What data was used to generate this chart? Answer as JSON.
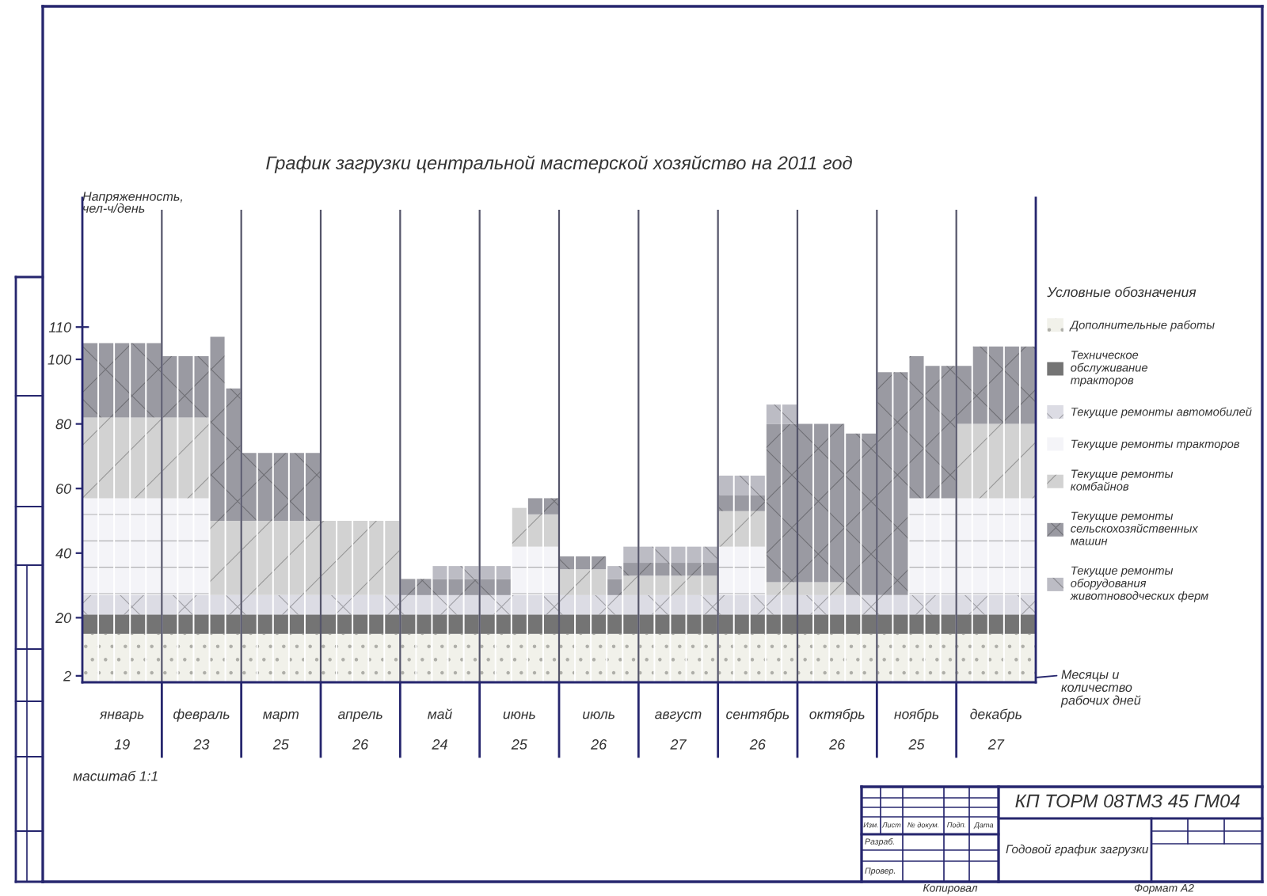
{
  "chart_data": {
    "type": "bar",
    "stacked": true,
    "title": "График загрузки центральной мастерской хозяйство на 2011 год",
    "ylabel": "Напряженность,\nчел-ч/день",
    "legend_title": "Условные обозначения",
    "legend": "right",
    "categories": [
      null,
      null,
      "январь",
      null,
      null,
      null,
      null,
      "февраль",
      null,
      null,
      null,
      null,
      "март",
      null,
      null,
      null,
      null,
      "апрель",
      null,
      null,
      null,
      null,
      "май",
      null,
      null,
      null,
      null,
      "июнь",
      null,
      null,
      null,
      null,
      "июль",
      null,
      null,
      null,
      null,
      "август",
      null,
      null,
      null,
      null,
      "сентябрь",
      null,
      null,
      null,
      null,
      "октябрь",
      null,
      null,
      null,
      null,
      "ноябрь",
      null,
      null,
      null,
      null,
      "декабрь",
      null,
      null
    ],
    "ylim": [
      0,
      150
    ],
    "yticks": [
      2,
      20,
      40,
      60,
      80,
      100,
      110
    ],
    "series": [
      {
        "name": "Дополнительные работы",
        "color": "#f1f1ea",
        "values": [
          15,
          15,
          15,
          15,
          15,
          15,
          15,
          15,
          15,
          15,
          15,
          15,
          15,
          15,
          15,
          15,
          15,
          15,
          15,
          15,
          15,
          15,
          15,
          15,
          15,
          15,
          15,
          15,
          15,
          15,
          15,
          15,
          15,
          15,
          15,
          15,
          15,
          15,
          15,
          15,
          15,
          15,
          15,
          15,
          15,
          15,
          15,
          15,
          15,
          15,
          15,
          15,
          15,
          15,
          15,
          15,
          15,
          15,
          15,
          15
        ]
      },
      {
        "name": "Техническое\nобслуживание\nтракторов",
        "color": "#747474",
        "values": [
          6,
          6,
          6,
          6,
          6,
          6,
          6,
          6,
          6,
          6,
          6,
          6,
          6,
          6,
          6,
          6,
          6,
          6,
          6,
          6,
          6,
          6,
          6,
          6,
          6,
          6,
          6,
          6,
          6,
          6,
          6,
          6,
          6,
          6,
          6,
          6,
          6,
          6,
          6,
          6,
          6,
          6,
          6,
          6,
          6,
          6,
          6,
          6,
          6,
          6,
          6,
          6,
          6,
          6,
          6,
          6,
          6,
          6,
          6,
          6
        ]
      },
      {
        "name": "Текущие ремонты автомобилей",
        "color": "#dcdce4",
        "values": [
          6,
          6,
          6,
          6,
          6,
          6,
          6,
          6,
          6,
          6,
          6,
          6,
          6,
          6,
          6,
          6,
          6,
          6,
          6,
          6,
          6,
          6,
          6,
          6,
          6,
          6,
          6,
          6,
          6,
          6,
          6,
          6,
          6,
          6,
          6,
          6,
          6,
          6,
          6,
          6,
          6,
          6,
          6,
          6,
          6,
          6,
          6,
          6,
          6,
          6,
          6,
          6,
          6,
          6,
          6,
          6,
          6,
          6,
          6,
          6
        ]
      },
      {
        "name": "Текущие ремонты тракторов",
        "color": "#f4f4f8",
        "values": [
          30,
          30,
          30,
          30,
          30,
          30,
          30,
          30,
          null,
          null,
          null,
          null,
          null,
          null,
          null,
          null,
          null,
          null,
          null,
          null,
          null,
          null,
          null,
          null,
          null,
          null,
          null,
          15,
          15,
          15,
          null,
          null,
          null,
          null,
          null,
          null,
          null,
          null,
          null,
          null,
          15,
          15,
          15,
          null,
          null,
          null,
          null,
          null,
          null,
          null,
          null,
          null,
          30,
          30,
          30,
          30,
          30,
          30,
          30,
          30
        ]
      },
      {
        "name": "Текущие ремонты\nкомбайнов",
        "color": "#d2d2d2",
        "values": [
          25,
          25,
          25,
          25,
          25,
          25,
          25,
          25,
          23,
          23,
          23,
          23,
          23,
          23,
          23,
          23,
          23,
          23,
          23,
          23,
          null,
          null,
          null,
          null,
          null,
          null,
          null,
          12,
          10,
          10,
          8,
          8,
          8,
          null,
          6,
          6,
          6,
          6,
          6,
          6,
          11,
          11,
          11,
          4,
          4,
          4,
          4,
          4,
          null,
          null,
          null,
          null,
          null,
          null,
          null,
          23,
          23,
          23,
          23,
          23
        ]
      },
      {
        "name": "Текущие ремонты\nсельскохозяйственных\nмашин",
        "color": "#9a9aa2",
        "values": [
          23,
          23,
          23,
          23,
          23,
          19,
          19,
          19,
          57,
          41,
          21,
          21,
          21,
          21,
          21,
          null,
          null,
          null,
          null,
          null,
          5,
          5,
          5,
          5,
          5,
          5,
          5,
          null,
          5,
          5,
          4,
          4,
          4,
          5,
          4,
          4,
          4,
          4,
          4,
          4,
          5,
          5,
          5,
          49,
          49,
          49,
          49,
          49,
          50,
          50,
          69,
          69,
          44,
          41,
          41,
          18,
          24,
          24,
          24,
          24
        ]
      },
      {
        "name": "Текущие ремонты\nоборудования\nживотноводческих ферм",
        "color": "#bcbcc4",
        "values": [
          null,
          null,
          null,
          null,
          null,
          null,
          null,
          null,
          null,
          null,
          null,
          null,
          null,
          null,
          null,
          null,
          null,
          null,
          null,
          null,
          null,
          null,
          4,
          4,
          4,
          4,
          4,
          null,
          null,
          null,
          null,
          null,
          null,
          4,
          5,
          5,
          5,
          5,
          5,
          5,
          6,
          6,
          6,
          6,
          6,
          null,
          null,
          null,
          null,
          null,
          null,
          null,
          null,
          null,
          null,
          null,
          null,
          null,
          null,
          null
        ]
      }
    ],
    "annotations": [
      "масштаб 1:1",
      "Месяцы и\nколичество\nрабочих дней",
      "КП ТОРМ 08ТМЗ 45 ГМ04",
      "Годовой график загрузки",
      "Изм.",
      "Лист",
      "№ докум.",
      "Подп.",
      "Дата",
      "Разраб.",
      "Провер.",
      "Копировал",
      "Формат А2",
      "19",
      "23",
      "25",
      "26",
      "24",
      "25",
      "26",
      "27",
      "26",
      "26",
      "25",
      "27"
    ]
  }
}
